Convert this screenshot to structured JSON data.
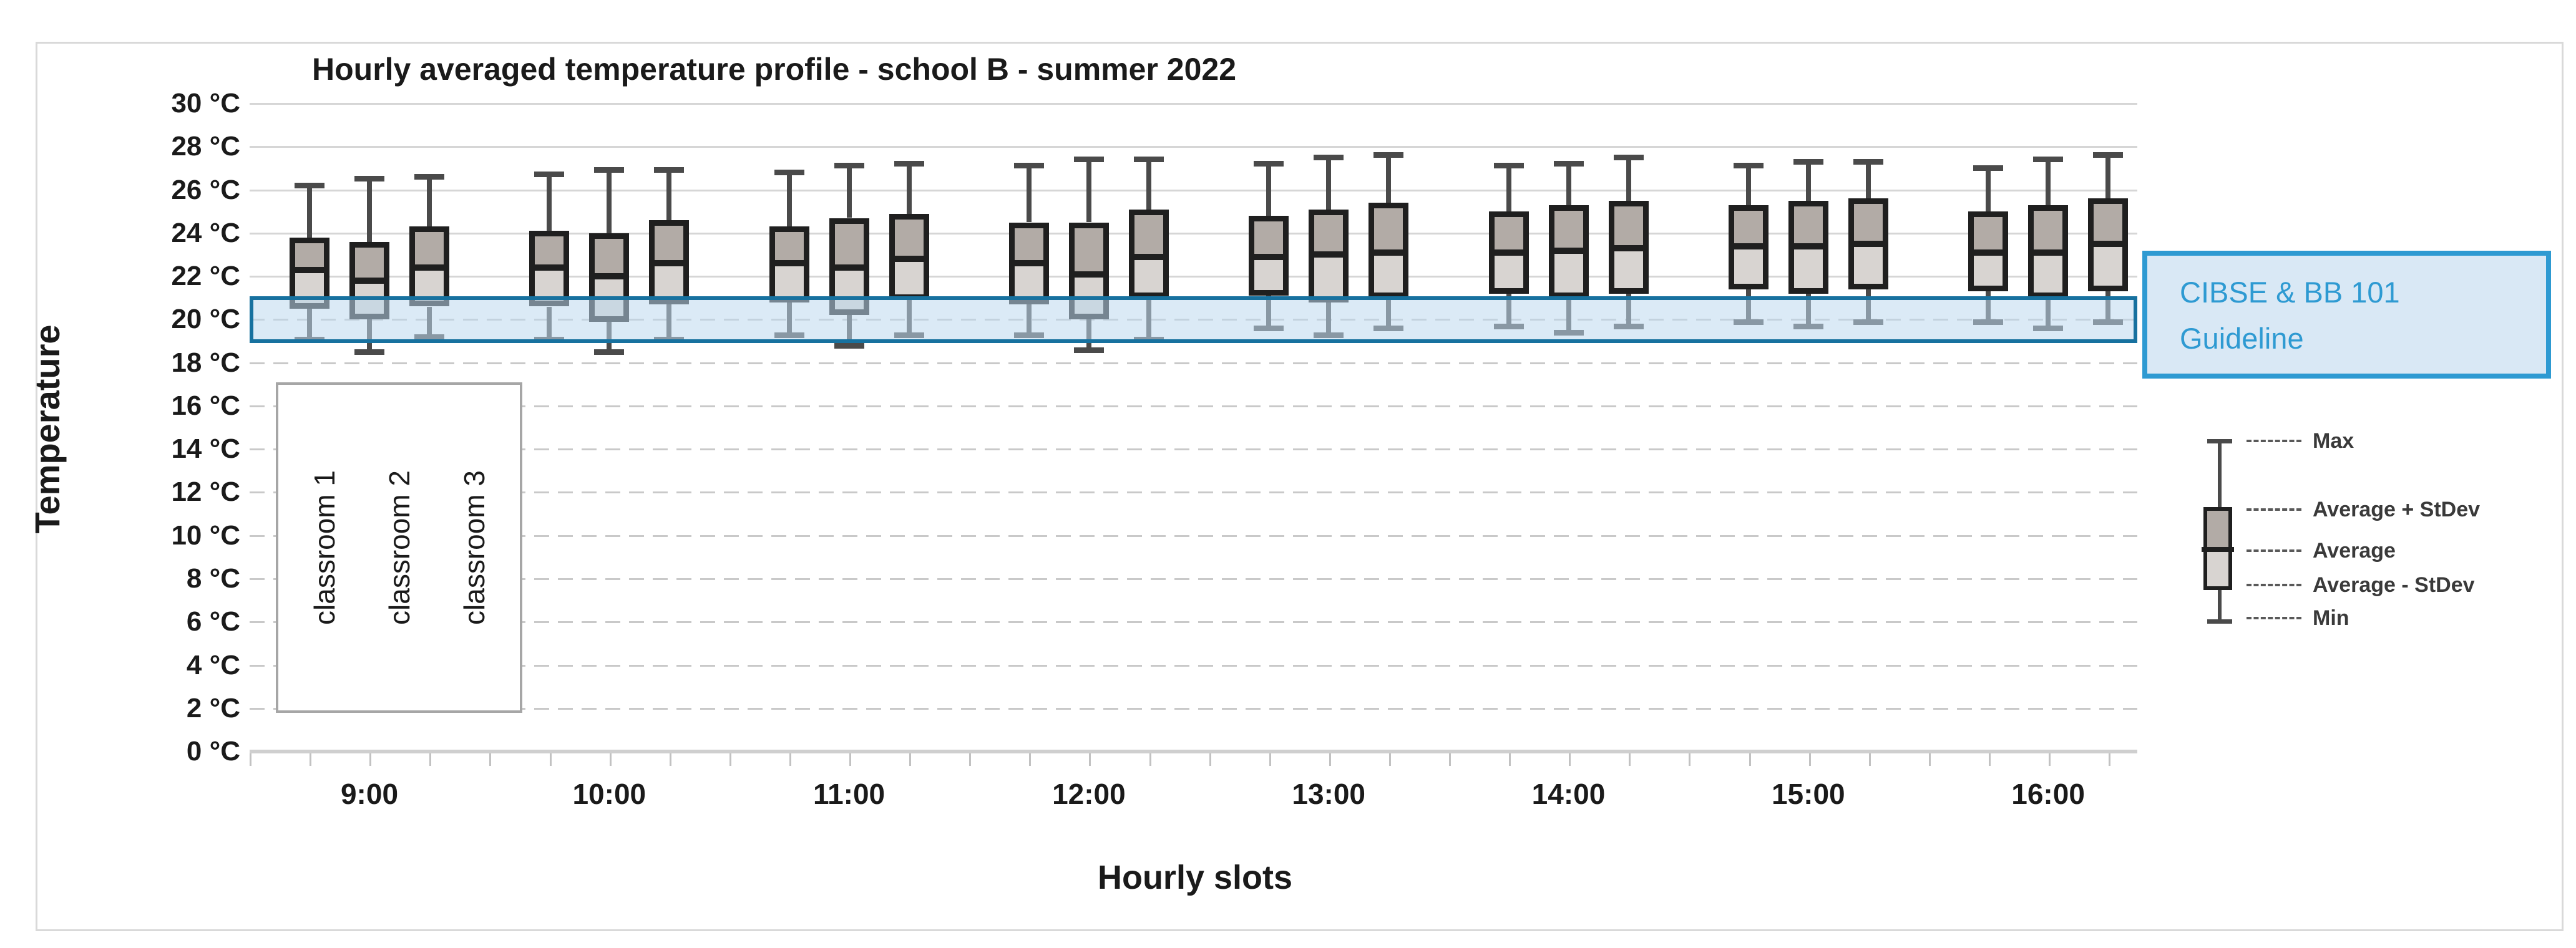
{
  "chart_data": {
    "type": "boxplot",
    "title": "Hourly averaged temperature profile - school B - summer 2022",
    "xlabel": "Hourly slots",
    "ylabel": "Temperature",
    "y_unit": "°C",
    "ylim": [
      0,
      30
    ],
    "ytick_step": 2,
    "ytick_labels": [
      "30 °C",
      "28 °C",
      "26 °C",
      "24 °C",
      "22 °C",
      "20 °C",
      "18 °C",
      "16 °C",
      "14 °C",
      "12 °C",
      "10 °C",
      "8 °C",
      "6 °C",
      "4 °C",
      "2 °C",
      "0 °C"
    ],
    "categories": [
      "9:00",
      "10:00",
      "11:00",
      "12:00",
      "13:00",
      "14:00",
      "15:00",
      "16:00"
    ],
    "series_labels": [
      "classroom 1",
      "classroom 2",
      "classroom 3"
    ],
    "legend_entries": [
      "Max",
      "Average + StDev",
      "Average",
      "Average - StDev",
      "Min"
    ],
    "guideline": {
      "line1": "CIBSE & BB 101",
      "line2": "Guideline",
      "upper_c": 21,
      "lower_c": 19
    },
    "boxes": [
      {
        "hour": "9:00",
        "classroom": "classroom 1",
        "min": 19.1,
        "avg_minus_stdev": 20.5,
        "average": 22.3,
        "avg_plus_stdev": 23.8,
        "max": 26.2
      },
      {
        "hour": "9:00",
        "classroom": "classroom 2",
        "min": 18.5,
        "avg_minus_stdev": 20.0,
        "average": 21.8,
        "avg_plus_stdev": 23.6,
        "max": 26.5
      },
      {
        "hour": "9:00",
        "classroom": "classroom 3",
        "min": 19.2,
        "avg_minus_stdev": 20.6,
        "average": 22.4,
        "avg_plus_stdev": 24.3,
        "max": 26.6
      },
      {
        "hour": "10:00",
        "classroom": "classroom 1",
        "min": 19.1,
        "avg_minus_stdev": 20.6,
        "average": 22.4,
        "avg_plus_stdev": 24.1,
        "max": 26.7
      },
      {
        "hour": "10:00",
        "classroom": "classroom 2",
        "min": 18.5,
        "avg_minus_stdev": 19.9,
        "average": 22.0,
        "avg_plus_stdev": 24.0,
        "max": 26.9
      },
      {
        "hour": "10:00",
        "classroom": "classroom 3",
        "min": 19.1,
        "avg_minus_stdev": 20.7,
        "average": 22.6,
        "avg_plus_stdev": 24.6,
        "max": 26.9
      },
      {
        "hour": "11:00",
        "classroom": "classroom 1",
        "min": 19.3,
        "avg_minus_stdev": 20.8,
        "average": 22.6,
        "avg_plus_stdev": 24.3,
        "max": 26.8
      },
      {
        "hour": "11:00",
        "classroom": "classroom 2",
        "min": 18.8,
        "avg_minus_stdev": 20.2,
        "average": 22.4,
        "avg_plus_stdev": 24.7,
        "max": 27.1
      },
      {
        "hour": "11:00",
        "classroom": "classroom 3",
        "min": 19.3,
        "avg_minus_stdev": 20.9,
        "average": 22.8,
        "avg_plus_stdev": 24.9,
        "max": 27.2
      },
      {
        "hour": "12:00",
        "classroom": "classroom 1",
        "min": 19.3,
        "avg_minus_stdev": 20.7,
        "average": 22.6,
        "avg_plus_stdev": 24.5,
        "max": 27.1
      },
      {
        "hour": "12:00",
        "classroom": "classroom 2",
        "min": 18.6,
        "avg_minus_stdev": 20.0,
        "average": 22.1,
        "avg_plus_stdev": 24.5,
        "max": 27.4
      },
      {
        "hour": "12:00",
        "classroom": "classroom 3",
        "min": 19.1,
        "avg_minus_stdev": 21.0,
        "average": 22.9,
        "avg_plus_stdev": 25.1,
        "max": 27.4
      },
      {
        "hour": "13:00",
        "classroom": "classroom 1",
        "min": 19.6,
        "avg_minus_stdev": 21.1,
        "average": 22.9,
        "avg_plus_stdev": 24.8,
        "max": 27.2
      },
      {
        "hour": "13:00",
        "classroom": "classroom 2",
        "min": 19.3,
        "avg_minus_stdev": 20.8,
        "average": 23.0,
        "avg_plus_stdev": 25.1,
        "max": 27.5
      },
      {
        "hour": "13:00",
        "classroom": "classroom 3",
        "min": 19.6,
        "avg_minus_stdev": 21.0,
        "average": 23.1,
        "avg_plus_stdev": 25.4,
        "max": 27.6
      },
      {
        "hour": "14:00",
        "classroom": "classroom 1",
        "min": 19.7,
        "avg_minus_stdev": 21.2,
        "average": 23.1,
        "avg_plus_stdev": 25.0,
        "max": 27.1
      },
      {
        "hour": "14:00",
        "classroom": "classroom 2",
        "min": 19.4,
        "avg_minus_stdev": 21.0,
        "average": 23.2,
        "avg_plus_stdev": 25.3,
        "max": 27.2
      },
      {
        "hour": "14:00",
        "classroom": "classroom 3",
        "min": 19.7,
        "avg_minus_stdev": 21.2,
        "average": 23.3,
        "avg_plus_stdev": 25.5,
        "max": 27.5
      },
      {
        "hour": "15:00",
        "classroom": "classroom 1",
        "min": 19.9,
        "avg_minus_stdev": 21.4,
        "average": 23.4,
        "avg_plus_stdev": 25.3,
        "max": 27.1
      },
      {
        "hour": "15:00",
        "classroom": "classroom 2",
        "min": 19.7,
        "avg_minus_stdev": 21.2,
        "average": 23.4,
        "avg_plus_stdev": 25.5,
        "max": 27.3
      },
      {
        "hour": "15:00",
        "classroom": "classroom 3",
        "min": 19.9,
        "avg_minus_stdev": 21.4,
        "average": 23.5,
        "avg_plus_stdev": 25.6,
        "max": 27.3
      },
      {
        "hour": "16:00",
        "classroom": "classroom 1",
        "min": 19.9,
        "avg_minus_stdev": 21.3,
        "average": 23.1,
        "avg_plus_stdev": 25.0,
        "max": 27.0
      },
      {
        "hour": "16:00",
        "classroom": "classroom 2",
        "min": 19.6,
        "avg_minus_stdev": 21.0,
        "average": 23.1,
        "avg_plus_stdev": 25.3,
        "max": 27.4
      },
      {
        "hour": "16:00",
        "classroom": "classroom 3",
        "min": 19.9,
        "avg_minus_stdev": 21.3,
        "average": 23.5,
        "avg_plus_stdev": 25.6,
        "max": 27.6
      }
    ],
    "layout_hints": {
      "grid": "horizontal, solid above 22°C, dashed below",
      "legend_position": "right"
    }
  },
  "colors": {
    "box_upper_fill": "#b2aba6",
    "box_lower_fill": "#d8d4d1",
    "box_border": "#1f1f1f",
    "whisker": "#4a4a4a",
    "gridline": "#d6d6d6",
    "band_fill": "rgba(190,216,238,0.55)",
    "band_border": "#17719f",
    "guideline_box_fill": "#d9e8f5",
    "guideline_box_border": "#2e9ad2",
    "guideline_text": "#2e9ad2"
  }
}
